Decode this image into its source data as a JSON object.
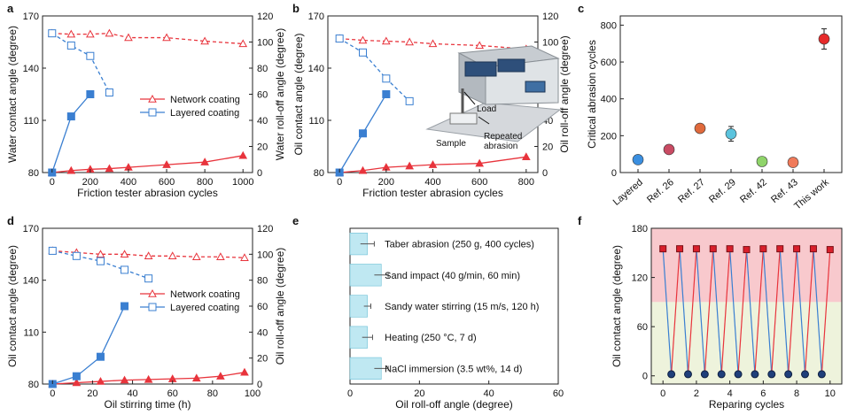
{
  "chart_data": [
    {
      "panel": "a",
      "type": "line",
      "xlabel": "Friction tester abrasion cycles",
      "ylabel": "Water contact angle (degree)",
      "y2label": "Water roll-off angle (degree)",
      "xlim": [
        0,
        1000
      ],
      "xticks": [
        0,
        200,
        400,
        600,
        800,
        1000
      ],
      "ylim": [
        80,
        170
      ],
      "yticks": [
        80,
        110,
        140,
        170
      ],
      "y2lim": [
        0,
        120
      ],
      "y2ticks": [
        0,
        20,
        40,
        60,
        80,
        100,
        120
      ],
      "legend": [
        "Network coating",
        "Layered coating"
      ],
      "series": [
        {
          "name": "Network coating",
          "axis": "left",
          "style": "dashed",
          "marker": "open-triangle",
          "color": "#e8343c",
          "x": [
            0,
            100,
            200,
            300,
            400,
            600,
            800,
            1000
          ],
          "y": [
            160,
            159.5,
            159.5,
            160,
            157.5,
            157.5,
            155.5,
            154
          ]
        },
        {
          "name": "Layered coating",
          "axis": "left",
          "style": "dashed",
          "marker": "open-square",
          "color": "#3a7fd1",
          "x": [
            0,
            100,
            200,
            300
          ],
          "y": [
            160,
            153,
            147,
            126
          ]
        },
        {
          "name": "Network coating",
          "axis": "right",
          "style": "solid",
          "marker": "filled-triangle",
          "color": "#e8343c",
          "x": [
            0,
            100,
            200,
            300,
            400,
            600,
            800,
            1000
          ],
          "y": [
            0,
            1.5,
            2.5,
            3,
            4,
            6,
            8,
            13
          ]
        },
        {
          "name": "Layered coating",
          "axis": "right",
          "style": "solid",
          "marker": "filled-square",
          "color": "#3a7fd1",
          "x": [
            0,
            100,
            200
          ],
          "y": [
            0,
            43,
            60
          ]
        }
      ]
    },
    {
      "panel": "b",
      "type": "line",
      "xlabel": "Friction tester abrasion cycles",
      "ylabel": "Oil contact angle (degree)",
      "y2label": "Oil roll-off angle (degree)",
      "xlim": [
        -50,
        850
      ],
      "xticks": [
        0,
        200,
        400,
        600,
        800
      ],
      "ylim": [
        80,
        170
      ],
      "yticks": [
        80,
        110,
        140,
        170
      ],
      "y2lim": [
        0,
        120
      ],
      "y2ticks": [
        0,
        20,
        40,
        60,
        80,
        100,
        120
      ],
      "inset_labels": [
        "Load",
        "Sample",
        "Repeated",
        "abrasion"
      ],
      "series": [
        {
          "axis": "left",
          "style": "dashed",
          "marker": "open-triangle",
          "color": "#e8343c",
          "x": [
            0,
            100,
            200,
            300,
            400,
            600,
            800
          ],
          "y": [
            157,
            156,
            155.5,
            155,
            154,
            153,
            151
          ]
        },
        {
          "axis": "left",
          "style": "dashed",
          "marker": "open-square",
          "color": "#3a7fd1",
          "x": [
            0,
            100,
            200,
            300
          ],
          "y": [
            157,
            149,
            134,
            121
          ]
        },
        {
          "axis": "right",
          "style": "solid",
          "marker": "filled-triangle",
          "color": "#e8343c",
          "x": [
            0,
            100,
            200,
            300,
            400,
            600,
            800
          ],
          "y": [
            0,
            1.5,
            4,
            5,
            6,
            7,
            12
          ]
        },
        {
          "axis": "right",
          "style": "solid",
          "marker": "filled-square",
          "color": "#3a7fd1",
          "x": [
            0,
            100,
            200
          ],
          "y": [
            0,
            30,
            60
          ]
        }
      ]
    },
    {
      "panel": "c",
      "type": "scatter",
      "ylabel": "Critical abrasion cycles",
      "ylim": [
        0,
        850
      ],
      "yticks": [
        0,
        200,
        400,
        600,
        800
      ],
      "categories": [
        "Layered",
        "Ref. 26",
        "Ref. 27",
        "Ref. 29",
        "Ref. 42",
        "Ref. 43",
        "This work"
      ],
      "values": [
        70,
        125,
        240,
        210,
        60,
        55,
        725
      ],
      "errors": [
        18,
        22,
        22,
        40,
        20,
        18,
        55
      ],
      "colors": [
        "#3b8fe0",
        "#c94b63",
        "#e06a3c",
        "#5bc3dd",
        "#8fd46a",
        "#f07a5a",
        "#e62b2b"
      ]
    },
    {
      "panel": "d",
      "type": "line",
      "xlabel": "Oil stirring time (h)",
      "ylabel": "Oil contact angle (degree)",
      "y2label": "Oil roll-off angle (degree)",
      "xlim": [
        -5,
        100
      ],
      "xticks": [
        0,
        20,
        40,
        60,
        80,
        100
      ],
      "ylim": [
        80,
        170
      ],
      "yticks": [
        80,
        110,
        140,
        170
      ],
      "y2lim": [
        0,
        120
      ],
      "y2ticks": [
        0,
        20,
        40,
        60,
        80,
        100,
        120
      ],
      "legend": [
        "Network coating",
        "Layered coating"
      ],
      "series": [
        {
          "name": "Network coating",
          "axis": "left",
          "style": "dashed",
          "marker": "open-triangle",
          "color": "#e8343c",
          "x": [
            0,
            12,
            24,
            36,
            48,
            60,
            72,
            84,
            96
          ],
          "y": [
            157,
            156,
            155,
            155,
            154,
            154,
            153.5,
            153.5,
            153
          ]
        },
        {
          "name": "Layered coating",
          "axis": "left",
          "style": "dashed",
          "marker": "open-square",
          "color": "#3a7fd1",
          "x": [
            0,
            12,
            24,
            36,
            48
          ],
          "y": [
            157,
            154,
            151,
            146,
            141
          ]
        },
        {
          "name": "Network coating",
          "axis": "right",
          "style": "solid",
          "marker": "filled-triangle",
          "color": "#e8343c",
          "x": [
            0,
            12,
            24,
            36,
            48,
            60,
            72,
            84,
            96
          ],
          "y": [
            0,
            1,
            2,
            3,
            3.5,
            4,
            4.5,
            6,
            9
          ]
        },
        {
          "name": "Layered coating",
          "axis": "right",
          "style": "solid",
          "marker": "filled-square",
          "color": "#3a7fd1",
          "x": [
            0,
            12,
            24,
            36
          ],
          "y": [
            0,
            6,
            21,
            60
          ]
        }
      ]
    },
    {
      "panel": "e",
      "type": "bar",
      "orientation": "horizontal",
      "xlabel": "Oil roll-off angle (degree)",
      "xlim": [
        0,
        60
      ],
      "xticks": [
        0,
        20,
        40,
        60
      ],
      "categories": [
        "Taber abrasion (250 g, 400 cycles)",
        "Sand impact (40 g/min, 60 min)",
        "Sandy water stirring (15 m/s, 120 h)",
        "Heating (250 °C, 7 d)",
        "NaCl immersion (3.5 wt%, 14 d)"
      ],
      "values": [
        5,
        9,
        5,
        5,
        9
      ],
      "errors": [
        2,
        2,
        1,
        1.5,
        2
      ],
      "color": "#bfe8f2"
    },
    {
      "panel": "f",
      "type": "line",
      "xlabel": "Reparing cycles",
      "ylabel": "Oil contact angle (degree)",
      "xlim": [
        -0.7,
        10.7
      ],
      "xticks": [
        0,
        2,
        4,
        6,
        8,
        10
      ],
      "ylim": [
        -10,
        180
      ],
      "yticks": [
        0,
        60,
        120,
        180
      ],
      "x": [
        0,
        0.5,
        1,
        1.5,
        2,
        2.5,
        3,
        3.5,
        4,
        4.5,
        5,
        5.5,
        6,
        6.5,
        7,
        7.5,
        8,
        8.5,
        9,
        9.5,
        10
      ],
      "y": [
        155,
        2,
        155,
        2,
        155,
        2,
        155,
        2,
        155,
        2,
        154,
        2,
        155,
        2,
        155,
        2,
        155,
        2,
        155,
        2,
        154
      ],
      "band_upper": "#f8c9cd",
      "band_lower": "#eef3dc"
    }
  ],
  "panel_labels": [
    "a",
    "b",
    "c",
    "d",
    "e",
    "f"
  ]
}
